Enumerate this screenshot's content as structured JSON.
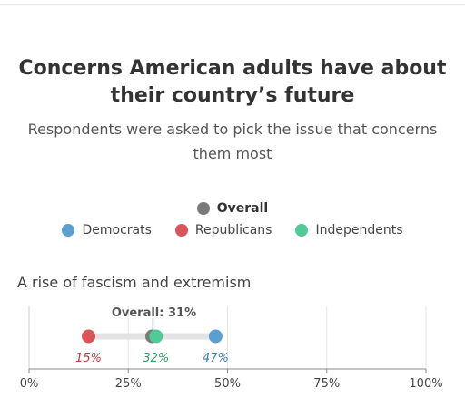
{
  "title": "Concerns American adults have about their country’s future",
  "subtitle": "Respondents were asked to pick the issue that concerns them most",
  "legend": {
    "overall": "Overall",
    "groups": [
      {
        "name": "Democrats",
        "color": "#5b9fd0"
      },
      {
        "name": "Republicans",
        "color": "#d95559"
      },
      {
        "name": "Independents",
        "color": "#4fcb96"
      }
    ]
  },
  "chart_data": {
    "type": "scatter",
    "title": "Concerns American adults have about their country’s future",
    "subtitle": "Respondents were asked to pick the issue that concerns them most",
    "categories": [
      "A rise of fascism and extremism"
    ],
    "series": [
      {
        "name": "Overall",
        "values": [
          31
        ],
        "color": "#7a7a7a"
      },
      {
        "name": "Democrats",
        "values": [
          47
        ],
        "color": "#5b9fd0",
        "label_color": "#3f7fae"
      },
      {
        "name": "Republicans",
        "values": [
          15
        ],
        "color": "#d95559",
        "label_color": "#c5373c"
      },
      {
        "name": "Independents",
        "values": [
          32
        ],
        "color": "#4fcb96",
        "label_color": "#2f9d6a"
      }
    ],
    "overall_annotation": "Overall: 31%",
    "value_labels": {
      "Republicans": "15%",
      "Independents": "32%",
      "Democrats": "47%"
    },
    "xlim": [
      0,
      100
    ],
    "xticks": [
      0,
      25,
      50,
      75,
      100
    ],
    "xtick_labels": [
      "0%",
      "25%",
      "50%",
      "75%",
      "100%"
    ],
    "grid": true,
    "legend_position": "top-center"
  }
}
